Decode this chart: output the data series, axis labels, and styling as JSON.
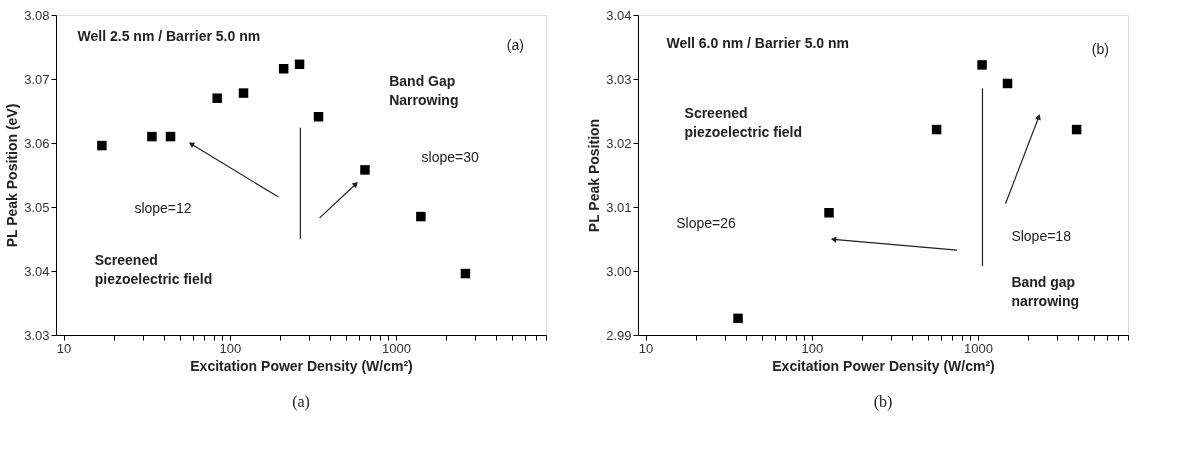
{
  "chart_data": [
    {
      "type": "scatter",
      "title": "Well 2.5 nm / Barrier 5.0 nm",
      "xlabel": "Excitation Power Density (W/cm²)",
      "ylabel": "PL Peak Position (eV)",
      "log": "x",
      "grid": false,
      "marker": "square",
      "ref_lines": [
        {
          "axis": "x",
          "value": 266
        }
      ],
      "xlim": [
        9,
        8000
      ],
      "xticks": [
        10,
        {
          "value": 20,
          "label": null
        },
        {
          "value": 30,
          "label": null
        },
        {
          "value": 40,
          "label": null
        },
        {
          "value": 50,
          "label": null
        },
        {
          "value": 60,
          "label": null
        },
        {
          "value": 70,
          "label": null
        },
        {
          "value": 80,
          "label": null
        },
        {
          "value": 90,
          "label": null
        },
        100,
        {
          "value": 200,
          "label": null
        },
        {
          "value": 300,
          "label": null
        },
        {
          "value": 400,
          "label": null
        },
        {
          "value": 500,
          "label": null
        },
        {
          "value": 600,
          "label": null
        },
        {
          "value": 700,
          "label": null
        },
        {
          "value": 800,
          "label": null
        },
        {
          "value": 900,
          "label": null
        },
        1000,
        {
          "value": 2000,
          "label": null
        },
        {
          "value": 3000,
          "label": null
        },
        {
          "value": 4000,
          "label": null
        },
        {
          "value": 5000,
          "label": null
        },
        {
          "value": 6000,
          "label": null
        },
        {
          "value": 7000,
          "label": null
        },
        {
          "value": 8000,
          "label": null
        }
      ],
      "ylim": [
        3.03,
        3.08
      ],
      "yticks": [
        3.03,
        3.04,
        3.05,
        3.06,
        3.07,
        3.08
      ],
      "series": [
        {
          "color": "#000000",
          "x": [
            17,
            34,
            44,
            84,
            121,
            211,
            263,
            342,
            651,
            1413,
            2620
          ],
          "values": [
            3.0596,
            3.061,
            3.061,
            3.067,
            3.0678,
            3.0716,
            3.0723,
            3.0641,
            3.0558,
            3.0485,
            3.0396
          ]
        }
      ],
      "annotations": [
        "(a)",
        "Band Gap\nNarrowing",
        "slope=30",
        "slope=12",
        "Screened\npiezoelectric field",
        "(a)"
      ]
    },
    {
      "type": "scatter",
      "title": "Well 6.0 nm / Barrier 5.0 nm",
      "xlabel": "Excitation Power Density (W/cm²)",
      "ylabel": "PL Peak Position",
      "log": "x",
      "grid": false,
      "marker": "square",
      "ref_lines": [
        {
          "axis": "x",
          "value": 1065
        }
      ],
      "xlim": [
        9,
        8000
      ],
      "xticks": [
        10,
        {
          "value": 20,
          "label": null
        },
        {
          "value": 30,
          "label": null
        },
        {
          "value": 40,
          "label": null
        },
        {
          "value": 50,
          "label": null
        },
        {
          "value": 60,
          "label": null
        },
        {
          "value": 70,
          "label": null
        },
        {
          "value": 80,
          "label": null
        },
        {
          "value": 90,
          "label": null
        },
        100,
        {
          "value": 200,
          "label": null
        },
        {
          "value": 300,
          "label": null
        },
        {
          "value": 400,
          "label": null
        },
        {
          "value": 500,
          "label": null
        },
        {
          "value": 600,
          "label": null
        },
        {
          "value": 700,
          "label": null
        },
        {
          "value": 800,
          "label": null
        },
        {
          "value": 900,
          "label": null
        },
        1000,
        {
          "value": 2000,
          "label": null
        },
        {
          "value": 3000,
          "label": null
        },
        {
          "value": 4000,
          "label": null
        },
        {
          "value": 5000,
          "label": null
        },
        {
          "value": 6000,
          "label": null
        },
        {
          "value": 7000,
          "label": null
        },
        {
          "value": 8000,
          "label": null
        }
      ],
      "ylim": [
        2.99,
        3.04
      ],
      "yticks": [
        2.99,
        {
          "value": 3.0,
          "label": "3.00"
        },
        3.01,
        3.02,
        3.03,
        3.04
      ],
      "series": [
        {
          "color": "#000000",
          "x": [
            36,
            127,
            564,
            1059,
            1507,
            3925
          ],
          "values": [
            2.9926,
            3.0091,
            3.0221,
            3.0322,
            3.0293,
            3.0221
          ]
        }
      ],
      "annotations": [
        "(b)",
        "Screened\npiezoelectric field",
        "Slope=26",
        "Slope=18",
        "Band gap\nnarrowing",
        "(b)"
      ]
    }
  ]
}
